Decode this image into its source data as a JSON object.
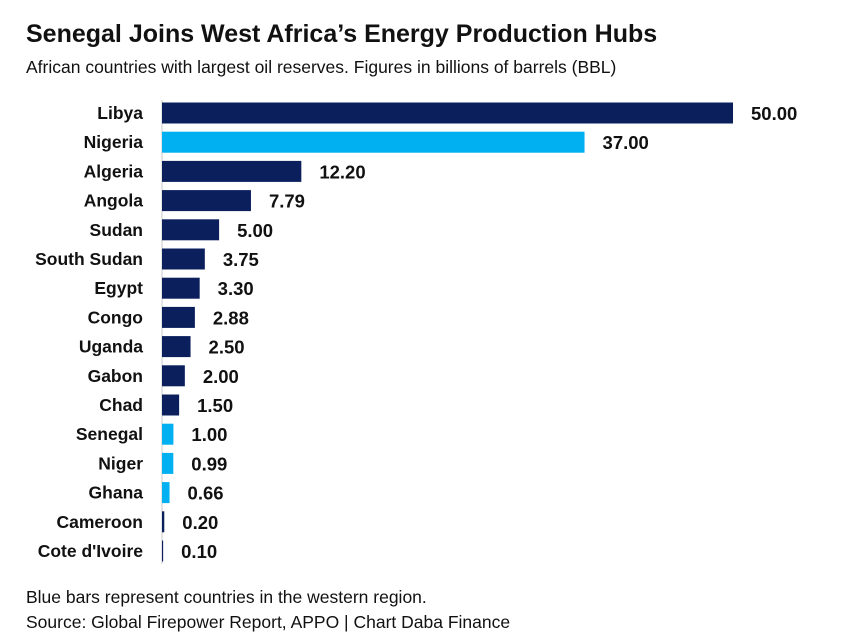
{
  "header": {
    "title": "Senegal Joins West Africa’s Energy Production Hubs",
    "subtitle": "African countries with largest oil reserves. Figures in billions of barrels (BBL)"
  },
  "footer": {
    "note": "Blue bars represent countries in the western region.",
    "source": "Source: Global Firepower Report, APPO | Chart Daba Finance"
  },
  "colors": {
    "default_bar": "#0b1f5c",
    "western_bar": "#00b0f0",
    "axis": "#c8c8c8"
  },
  "chart_data": {
    "type": "bar",
    "orientation": "horizontal",
    "title": "Senegal Joins West Africa’s Energy Production Hubs",
    "subtitle": "African countries with largest oil reserves. Figures in billions of barrels (BBL)",
    "xlabel": "",
    "ylabel": "",
    "xlim": [
      0,
      50
    ],
    "grid": false,
    "categories": [
      "Libya",
      "Nigeria",
      "Algeria",
      "Angola",
      "Sudan",
      "South Sudan",
      "Egypt",
      "Congo",
      "Uganda",
      "Gabon",
      "Chad",
      "Senegal",
      "Niger",
      "Ghana",
      "Cameroon",
      "Cote d'Ivoire"
    ],
    "values": [
      50.0,
      37.0,
      12.2,
      7.79,
      5.0,
      3.75,
      3.3,
      2.88,
      2.5,
      2.0,
      1.5,
      1.0,
      0.99,
      0.66,
      0.2,
      0.1
    ],
    "value_labels": [
      "50.00",
      "37.00",
      "12.20",
      "7.79",
      "5.00",
      "3.75",
      "3.30",
      "2.88",
      "2.50",
      "2.00",
      "1.50",
      "1.00",
      "0.99",
      "0.66",
      "0.20",
      "0.10"
    ],
    "western_region": [
      false,
      true,
      false,
      false,
      false,
      false,
      false,
      false,
      false,
      false,
      false,
      true,
      true,
      true,
      false,
      false
    ]
  }
}
